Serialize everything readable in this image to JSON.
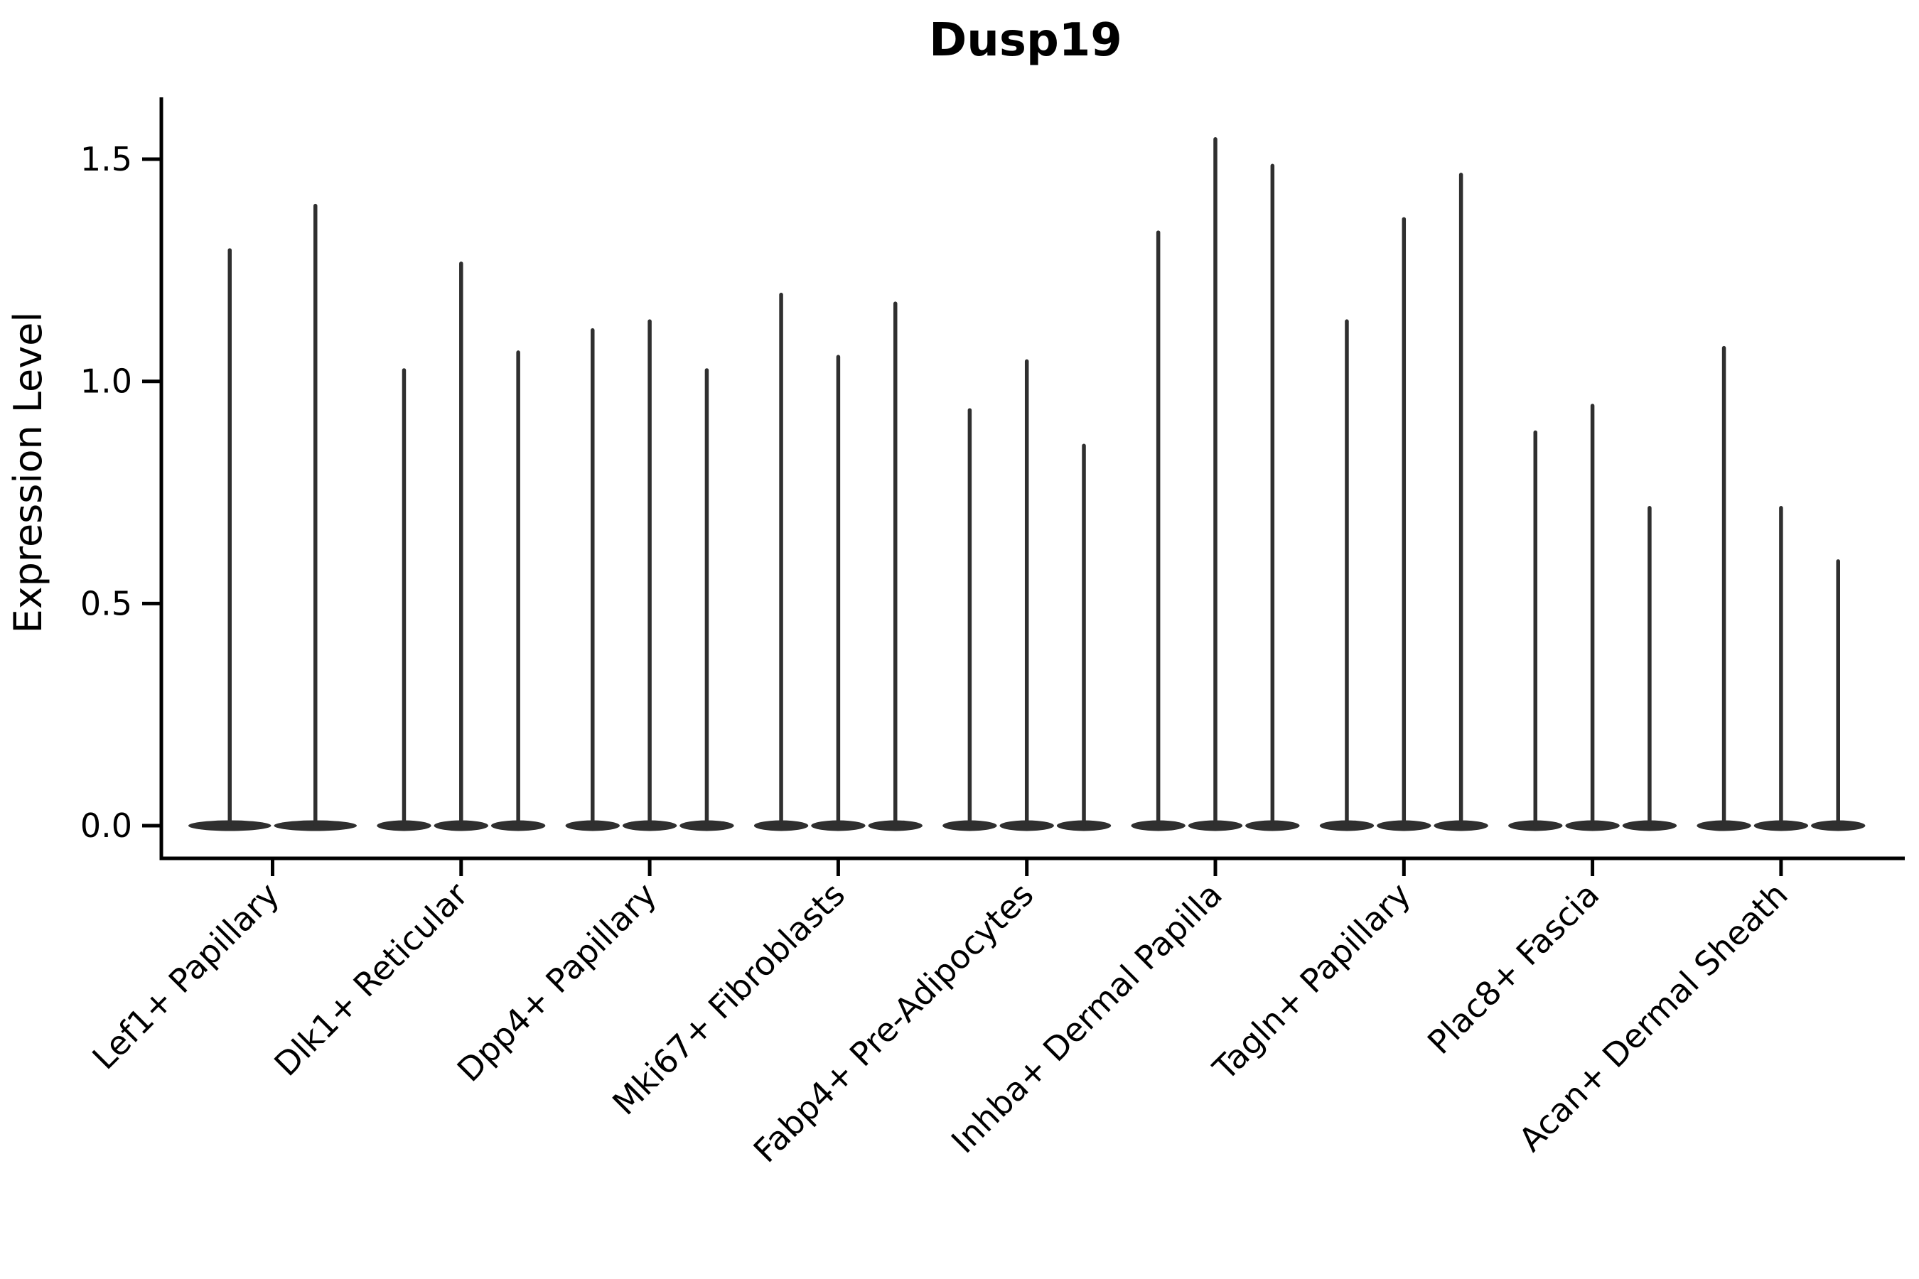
{
  "title": "Dusp19",
  "ylabel": "Expression Level",
  "chart_data": {
    "type": "violin",
    "title": "Dusp19",
    "xlabel": "",
    "ylabel": "Expression Level",
    "ylim": [
      0.0,
      1.64
    ],
    "ytick_labels": [
      "0.0",
      "0.5",
      "1.0",
      "1.5"
    ],
    "ytick_values": [
      0.0,
      0.5,
      1.0,
      1.5
    ],
    "grid": false,
    "legend_position": "none",
    "violin_color": "#2f2f2f",
    "axis_color": "#000000",
    "background_color": "#ffffff",
    "categories": [
      "Lef1+ Papillary",
      "Dlk1+ Reticular",
      "Dpp4+ Papillary",
      "Mki67+ Fibroblasts",
      "Fabp4+ Pre-Adipocytes",
      "Inhba+ Dermal Papilla",
      "Tagln+ Papillary",
      "Plac8+ Fascia",
      "Acan+ Dermal Sheath"
    ],
    "violins": [
      {
        "category": "Lef1+ Papillary",
        "baseline_value": 0.0,
        "max_expression": [
          1.3,
          1.4
        ]
      },
      {
        "category": "Dlk1+ Reticular",
        "baseline_value": 0.0,
        "max_expression": [
          1.03,
          1.27,
          1.07
        ]
      },
      {
        "category": "Dpp4+ Papillary",
        "baseline_value": 0.0,
        "max_expression": [
          1.12,
          1.14,
          1.03
        ]
      },
      {
        "category": "Mki67+ Fibroblasts",
        "baseline_value": 0.0,
        "max_expression": [
          1.2,
          1.06,
          1.18
        ]
      },
      {
        "category": "Fabp4+ Pre-Adipocytes",
        "baseline_value": 0.0,
        "max_expression": [
          0.94,
          1.05,
          0.86
        ]
      },
      {
        "category": "Inhba+ Dermal Papilla",
        "baseline_value": 0.0,
        "max_expression": [
          1.34,
          1.55,
          1.49
        ]
      },
      {
        "category": "Tagln+ Papillary",
        "baseline_value": 0.0,
        "max_expression": [
          1.14,
          1.37,
          1.47
        ]
      },
      {
        "category": "Plac8+ Fascia",
        "baseline_value": 0.0,
        "max_expression": [
          0.89,
          0.95,
          0.72
        ]
      },
      {
        "category": "Acan+ Dermal Sheath",
        "baseline_value": 0.0,
        "max_expression": [
          1.08,
          0.72,
          0.6
        ]
      }
    ]
  }
}
